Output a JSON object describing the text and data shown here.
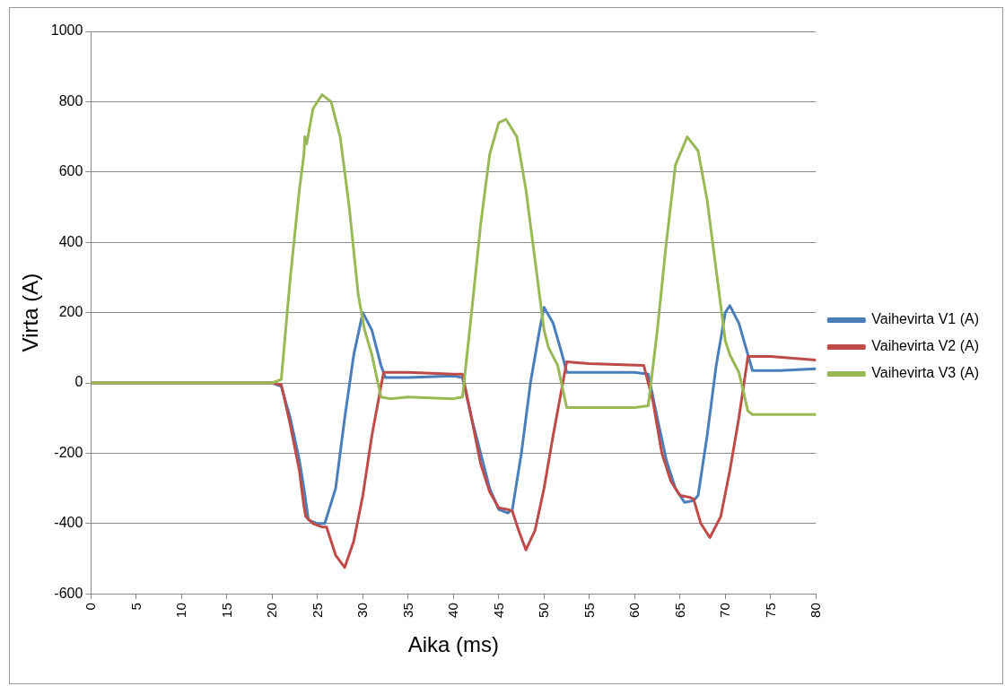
{
  "chart_data": {
    "type": "line",
    "xlabel": "Aika (ms)",
    "ylabel": "Virta (A)",
    "xlim": [
      0,
      80
    ],
    "xticks": [
      0,
      5,
      10,
      15,
      20,
      25,
      30,
      35,
      40,
      45,
      50,
      55,
      60,
      65,
      70,
      75,
      80
    ],
    "ylim": [
      -600,
      1000
    ],
    "yticks": [
      -600,
      -400,
      -200,
      0,
      200,
      400,
      600,
      800,
      1000
    ],
    "grid": "y",
    "legend": "right",
    "marker": "none",
    "line_style": "solid",
    "series": [
      {
        "name": "Vaihevirta V1 (A)",
        "color": "#4a7ebb",
        "x": [
          0,
          20,
          21,
          22,
          23,
          23.5,
          24,
          25,
          25.8,
          27,
          28,
          29,
          30,
          31,
          32,
          32.5,
          35,
          40,
          41,
          42,
          43,
          44,
          45,
          46,
          46.5,
          47.5,
          48.5,
          49.5,
          50,
          51,
          52,
          52.5,
          55,
          60,
          61.5,
          62.5,
          63.5,
          64.5,
          65.5,
          66.5,
          67,
          68,
          69,
          70,
          70.5,
          71.5,
          72.5,
          73,
          76,
          80
        ],
        "values": [
          0,
          0,
          -10,
          -100,
          -220,
          -300,
          -390,
          -400,
          -400,
          -300,
          -100,
          80,
          200,
          150,
          50,
          15,
          15,
          20,
          15,
          -100,
          -200,
          -300,
          -360,
          -370,
          -360,
          -200,
          0,
          150,
          215,
          170,
          80,
          30,
          30,
          30,
          25,
          -100,
          -220,
          -300,
          -340,
          -335,
          -320,
          -150,
          50,
          200,
          220,
          170,
          80,
          35,
          35,
          40
        ]
      },
      {
        "name": "Vaihevirta V2 (A)",
        "color": "#be4b48",
        "x": [
          0,
          20,
          21,
          22,
          23,
          23.5,
          23.7,
          24.5,
          25.5,
          26,
          27,
          28,
          29,
          30,
          31,
          32,
          32.3,
          35,
          40,
          41,
          42,
          43,
          44,
          45,
          46,
          46.5,
          47.2,
          48,
          49,
          50,
          51,
          52,
          52.5,
          55,
          61,
          62,
          63,
          64,
          65,
          66,
          66.5,
          67.3,
          68.3,
          69.5,
          70.5,
          71.5,
          72.5,
          75,
          80
        ],
        "values": [
          0,
          0,
          -5,
          -120,
          -250,
          -350,
          -380,
          -400,
          -410,
          -410,
          -490,
          -525,
          -450,
          -320,
          -150,
          -10,
          30,
          30,
          25,
          25,
          -100,
          -230,
          -310,
          -355,
          -360,
          -365,
          -420,
          -475,
          -420,
          -300,
          -150,
          -10,
          60,
          55,
          50,
          -50,
          -200,
          -280,
          -320,
          -325,
          -330,
          -400,
          -440,
          -380,
          -250,
          -100,
          75,
          75,
          65
        ]
      },
      {
        "name": "Vaihevirta V3 (A)",
        "color": "#98b954",
        "x": [
          0,
          20,
          21,
          22,
          23,
          23.5,
          23.6,
          23.8,
          24.5,
          25.5,
          26.5,
          27.5,
          28.5,
          29.5,
          30.2,
          31,
          32,
          33,
          35,
          40,
          41,
          42,
          43,
          44,
          45,
          45.8,
          47,
          48,
          49,
          50,
          50.5,
          51.5,
          52.5,
          55,
          60,
          61.5,
          62.5,
          63.5,
          64.5,
          65.8,
          67,
          68,
          69,
          70,
          70.5,
          71.5,
          72.5,
          73,
          80
        ],
        "values": [
          0,
          0,
          10,
          300,
          550,
          650,
          700,
          680,
          780,
          820,
          800,
          700,
          500,
          250,
          150,
          80,
          -40,
          -45,
          -40,
          -45,
          -40,
          200,
          450,
          650,
          740,
          750,
          700,
          550,
          350,
          150,
          100,
          50,
          -70,
          -70,
          -70,
          -65,
          150,
          400,
          620,
          700,
          660,
          520,
          320,
          120,
          80,
          30,
          -80,
          -90,
          -90
        ]
      }
    ]
  }
}
